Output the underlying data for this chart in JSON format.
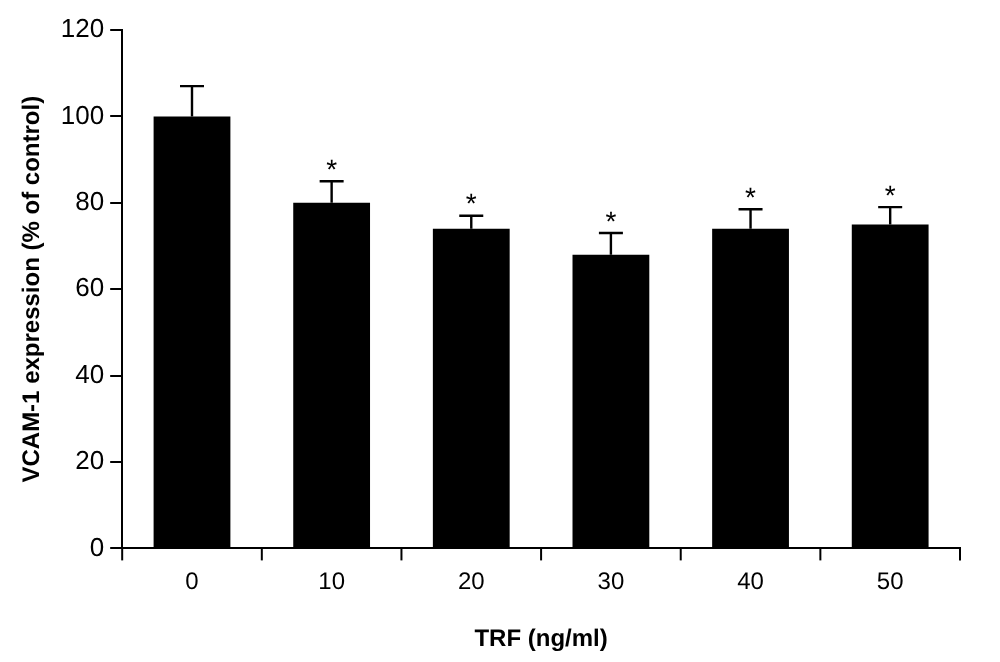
{
  "chart_data": {
    "type": "bar",
    "xlabel": "TRF (ng/ml)",
    "ylabel": "VCAM-1 expression (% of control)",
    "categories": [
      "0",
      "10",
      "20",
      "30",
      "40",
      "50"
    ],
    "values": [
      100,
      80,
      74,
      68,
      74,
      75
    ],
    "errors": [
      7,
      5,
      3,
      5,
      4.5,
      4
    ],
    "color": "#000000",
    "ylim": [
      0,
      120
    ],
    "yticks": [
      0,
      20,
      40,
      60,
      80,
      100,
      120
    ],
    "grid": false,
    "legend": false,
    "annotations": [
      {
        "text": "*",
        "x": "10",
        "y": 85
      },
      {
        "text": "*",
        "x": "20",
        "y": 77
      },
      {
        "text": "*",
        "x": "30",
        "y": 73
      },
      {
        "text": "*",
        "x": "40",
        "y": 78.5
      },
      {
        "text": "*",
        "x": "50",
        "y": 79
      }
    ]
  }
}
